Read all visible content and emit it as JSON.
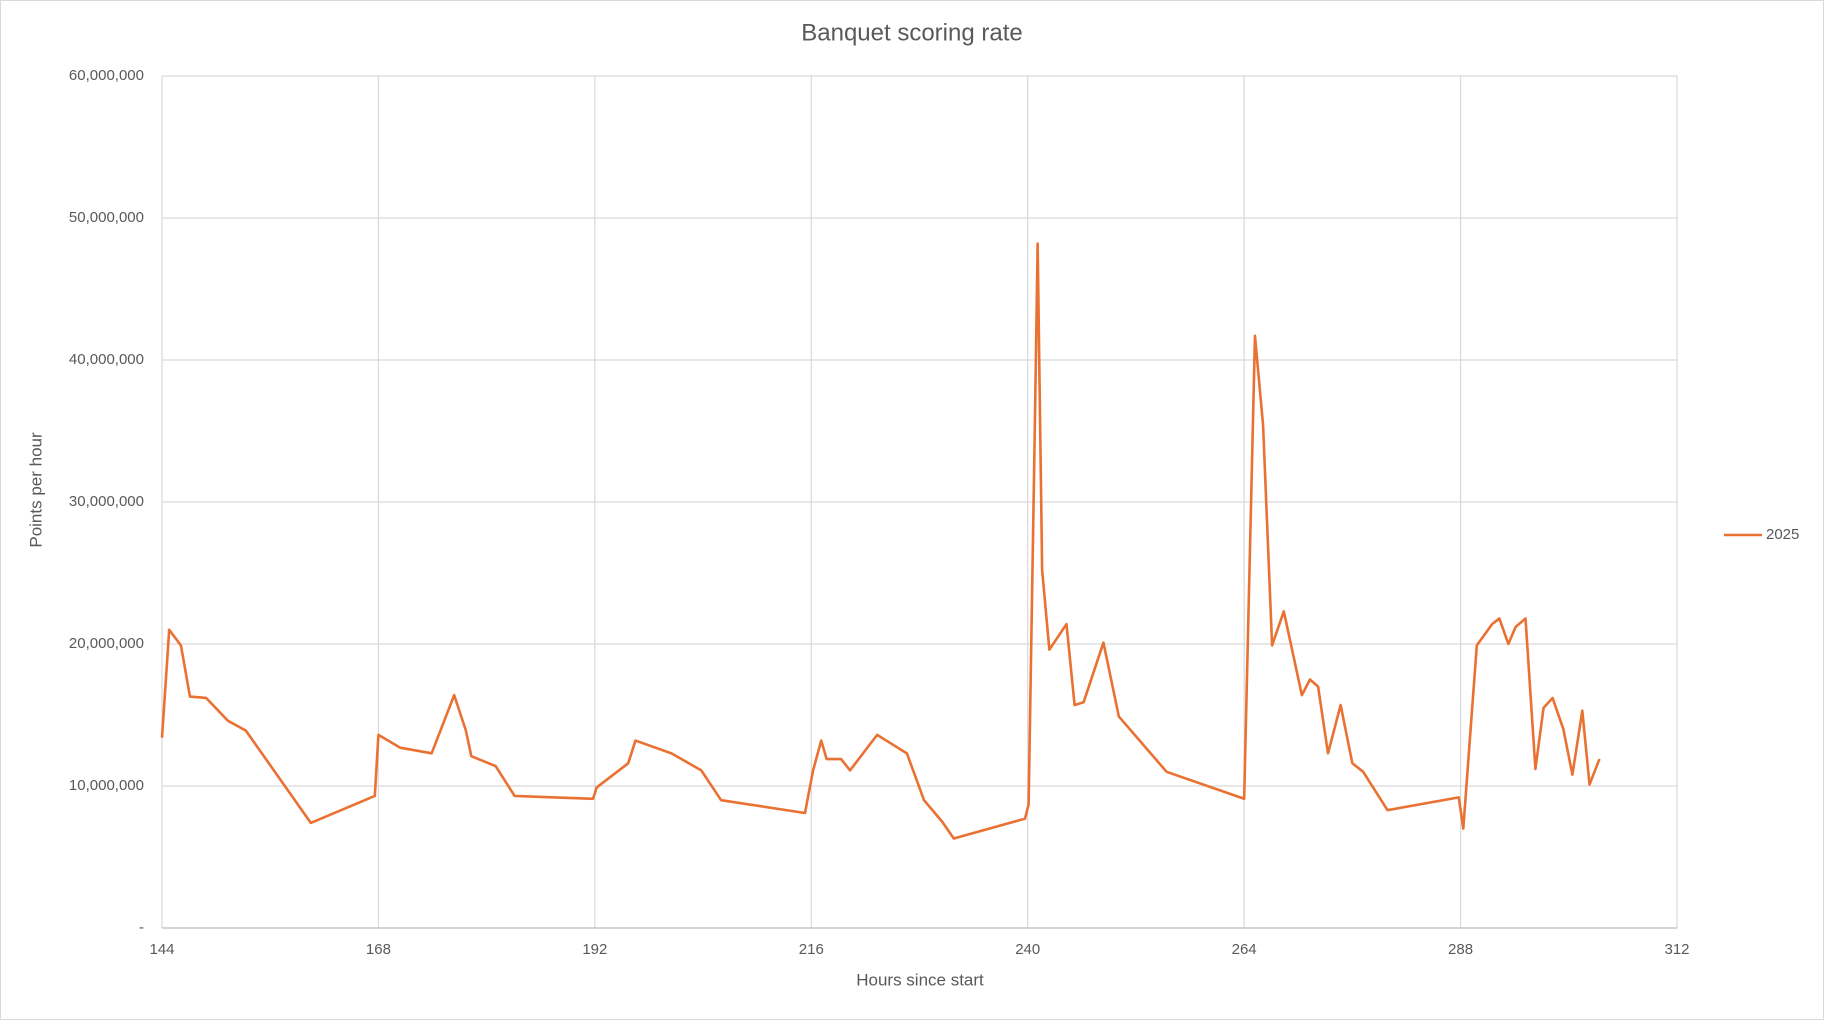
{
  "chart_data": {
    "type": "line",
    "title": "Banquet scoring rate",
    "x_label": "Hours since start",
    "y_label": "Points per hour",
    "xlim": [
      144,
      312
    ],
    "xticks": [
      144,
      168,
      192,
      216,
      240,
      264,
      288,
      312
    ],
    "ylim": [
      0,
      60000000
    ],
    "yticks": [
      {
        "value": 0,
        "label": "-"
      },
      {
        "value": 10000000,
        "label": "10,000,000"
      },
      {
        "value": 20000000,
        "label": "20,000,000"
      },
      {
        "value": 30000000,
        "label": "30,000,000"
      },
      {
        "value": 40000000,
        "label": "40,000,000"
      },
      {
        "value": 50000000,
        "label": "50,000,000"
      },
      {
        "value": 60000000,
        "label": "60,000,000"
      }
    ],
    "grid": true,
    "legend": "right",
    "x": [
      144,
      144.8,
      146.1,
      147.1,
      148.9,
      151.3,
      153.3,
      160.5,
      167.6,
      168.0,
      170.4,
      173.9,
      176.4,
      177.7,
      178.3,
      181.0,
      183.1,
      191.8,
      192.2,
      195.7,
      196.5,
      200.5,
      203.8,
      206.0,
      215.3,
      216.2,
      217.1,
      217.7,
      219.3,
      220.3,
      223.3,
      226.6,
      228.5,
      230.5,
      231.8,
      239.7,
      240.1,
      240.8,
      241.1,
      241.6,
      242.4,
      244.3,
      245.2,
      246.2,
      248.4,
      250.1,
      255.4,
      264.0,
      265.2,
      266.1,
      267.1,
      268.4,
      270.4,
      271.3,
      272.2,
      273.3,
      274.7,
      276.0,
      277.2,
      279.9,
      287.8,
      288.3,
      289.8,
      291.5,
      292.3,
      293.3,
      294.1,
      295.2,
      296.3,
      297.2,
      298.2,
      299.4,
      300.4,
      301.5,
      302.3,
      303.4
    ],
    "series": [
      {
        "name": "2025",
        "color": "#e97132",
        "values": [
          13400000,
          21000000,
          19900000,
          16300000,
          16200000,
          14600000,
          13900000,
          7400000,
          9300000,
          13600000,
          12700000,
          12300000,
          16400000,
          13900000,
          12100000,
          11400000,
          9300000,
          9100000,
          9900000,
          11600000,
          13200000,
          12300000,
          11100000,
          9000000,
          8100000,
          11100000,
          13200000,
          11900000,
          11900000,
          11100000,
          13600000,
          12300000,
          9000000,
          7500000,
          6300000,
          7700000,
          8700000,
          35700000,
          48200000,
          25200000,
          19600000,
          21400000,
          15700000,
          15900000,
          20100000,
          14900000,
          11000000,
          9100000,
          41700000,
          35400000,
          19900000,
          22300000,
          16400000,
          17500000,
          17000000,
          12300000,
          15700000,
          11600000,
          11000000,
          8300000,
          9200000,
          7000000,
          19900000,
          21400000,
          21800000,
          20000000,
          21200000,
          21800000,
          11200000,
          15500000,
          16200000,
          14000000,
          10800000,
          15300000,
          10100000,
          11900000
        ]
      }
    ]
  }
}
